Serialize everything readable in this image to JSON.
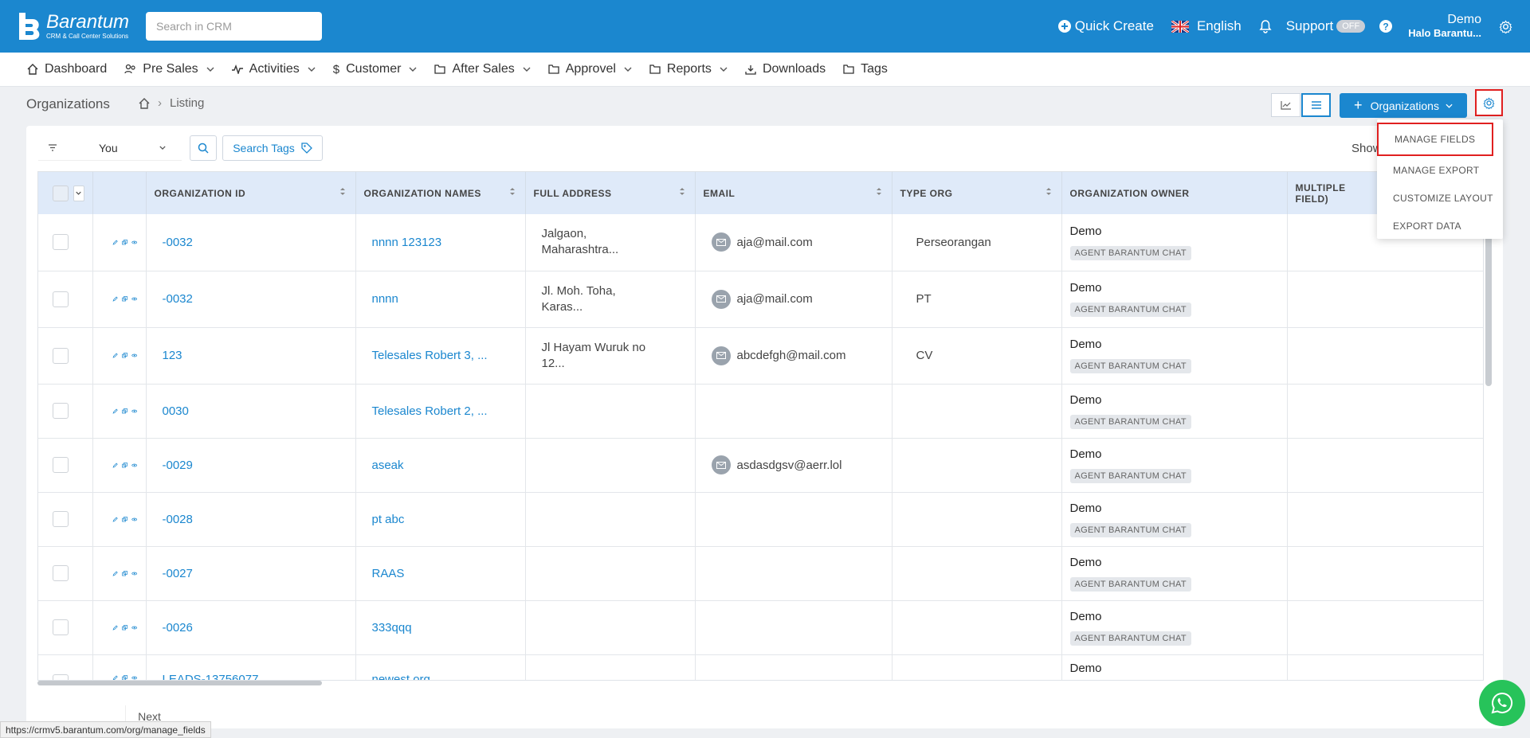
{
  "brand": {
    "name": "Barantum",
    "tagline": "CRM & Call Center Solutions"
  },
  "search": {
    "placeholder": "Search in CRM"
  },
  "topbar": {
    "quick_create": "Quick Create",
    "language": "English",
    "support": "Support",
    "support_status": "OFF",
    "user_name": "Demo",
    "user_sub": "Halo Barantu..."
  },
  "nav": [
    {
      "label": "Dashboard",
      "icon": "home-icon"
    },
    {
      "label": "Pre Sales",
      "icon": "users-icon"
    },
    {
      "label": "Activities",
      "icon": "activity-icon"
    },
    {
      "label": "Customer",
      "icon": "dollar-icon"
    },
    {
      "label": "After Sales",
      "icon": "folder-icon"
    },
    {
      "label": "Approvel",
      "icon": "folder-icon"
    },
    {
      "label": "Reports",
      "icon": "folder-icon"
    },
    {
      "label": "Downloads",
      "icon": "download-icon"
    },
    {
      "label": "Tags",
      "icon": "folder-icon"
    }
  ],
  "page": {
    "title": "Organizations",
    "crumb": "Listing"
  },
  "actions": {
    "organizations": "Organizations"
  },
  "filter": {
    "value": "You",
    "search_tags": "Search Tags",
    "show": "Show"
  },
  "table": {
    "headers": [
      "ORGANIZATION ID",
      "ORGANIZATION NAMES",
      "FULL ADDRESS",
      "EMAIL",
      "TYPE ORG",
      "ORGANIZATION OWNER",
      "MULTIPLE FIELD)"
    ],
    "rows": [
      {
        "id": "-0032",
        "name": "nnnn 123123",
        "addr1": "Jalgaon,",
        "addr2": "Maharashtra...",
        "email": "aja@mail.com",
        "type": "Perseorangan",
        "owner": "Demo",
        "tag": "AGENT BARANTUM CHAT"
      },
      {
        "id": "-0032",
        "name": "nnnn",
        "addr1": "Jl. Moh. Toha,",
        "addr2": "Karas...",
        "email": "aja@mail.com",
        "type": "PT",
        "owner": "Demo",
        "tag": "AGENT BARANTUM CHAT"
      },
      {
        "id": "123",
        "name": "Telesales Robert 3, ...",
        "addr1": "Jl Hayam Wuruk no",
        "addr2": "12...",
        "email": "abcdefgh@mail.com",
        "type": "CV",
        "owner": "Demo",
        "tag": "AGENT BARANTUM CHAT"
      },
      {
        "id": "0030",
        "name": "Telesales Robert 2, ...",
        "addr1": "",
        "addr2": "",
        "email": "",
        "type": "",
        "owner": "Demo",
        "tag": "AGENT BARANTUM CHAT"
      },
      {
        "id": "-0029",
        "name": "aseak",
        "addr1": "",
        "addr2": "",
        "email": "asdasdgsv@aerr.lol",
        "type": "",
        "owner": "Demo",
        "tag": "AGENT BARANTUM CHAT"
      },
      {
        "id": "-0028",
        "name": "pt abc",
        "addr1": "",
        "addr2": "",
        "email": "",
        "type": "",
        "owner": "Demo",
        "tag": "AGENT BARANTUM CHAT"
      },
      {
        "id": "-0027",
        "name": "RAAS",
        "addr1": "",
        "addr2": "",
        "email": "",
        "type": "",
        "owner": "Demo",
        "tag": "AGENT BARANTUM CHAT"
      },
      {
        "id": "-0026",
        "name": "333qqq",
        "addr1": "",
        "addr2": "",
        "email": "",
        "type": "",
        "owner": "Demo",
        "tag": "AGENT BARANTUM CHAT"
      },
      {
        "id": "LEADS-13756077",
        "name": "newest org",
        "addr1": "",
        "addr2": "",
        "email": "",
        "type": "",
        "owner": "Demo",
        "tag": ""
      }
    ]
  },
  "pagination": {
    "next": "Next"
  },
  "dropdown": [
    "MANAGE FIELDS",
    "MANAGE EXPORT",
    "CUSTOMIZE LAYOUT",
    "EXPORT DATA"
  ],
  "status_url": "https://crmv5.barantum.com/org/manage_fields",
  "colors": {
    "primary": "#1b87cf",
    "highlight": "#e02020",
    "whatsapp": "#27c35a"
  }
}
